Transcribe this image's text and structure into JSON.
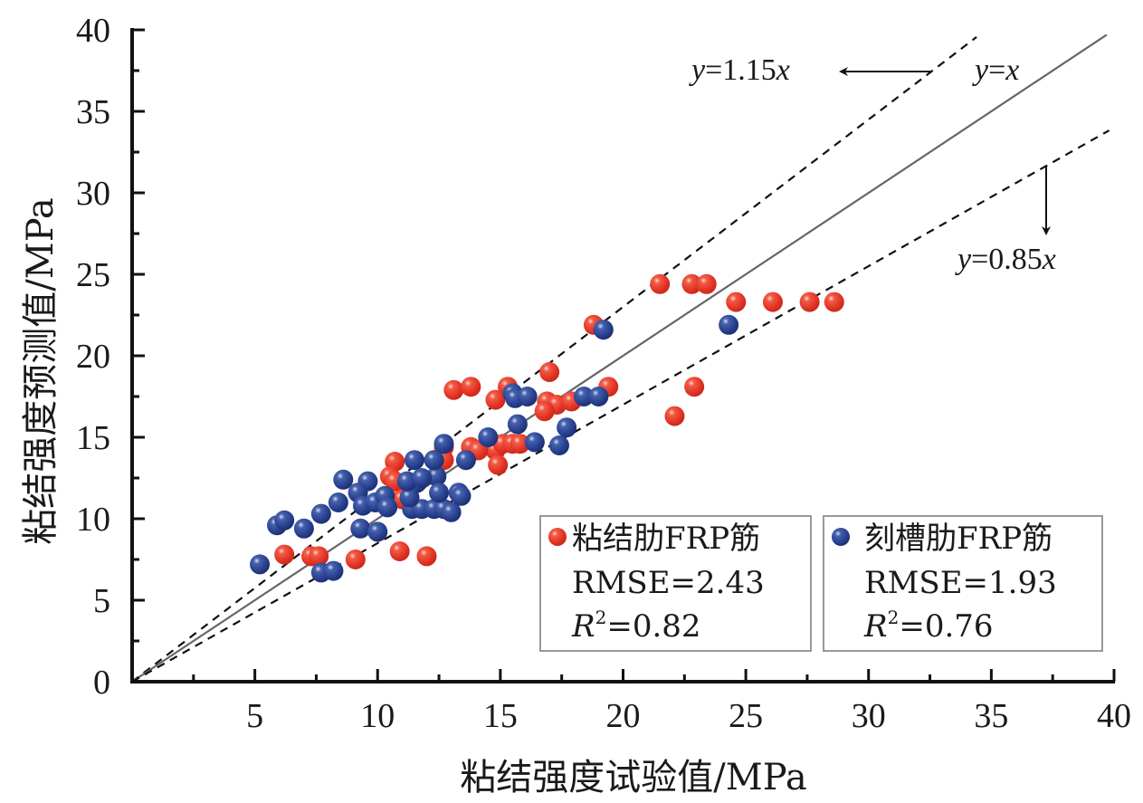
{
  "chart_data": {
    "type": "scatter",
    "title": "",
    "xlabel": "粘结强度试验值/MPa",
    "ylabel": "粘结强度预测值/MPa",
    "xlim": [
      0,
      40
    ],
    "ylim": [
      0,
      40
    ],
    "x_ticks": [
      0,
      5,
      10,
      15,
      20,
      25,
      30,
      35,
      40
    ],
    "y_ticks": [
      0,
      5,
      10,
      15,
      20,
      25,
      30,
      35,
      40
    ],
    "x_tick_labels": [
      "5",
      "10",
      "15",
      "20",
      "25",
      "30",
      "35",
      "40"
    ],
    "y_tick_labels": [
      "0",
      "5",
      "10",
      "15",
      "20",
      "25",
      "30",
      "35",
      "40"
    ],
    "grid": false,
    "reference_lines": [
      {
        "name": "y=1.15x",
        "slope": 1.15,
        "style": "dashed",
        "label_prefix": "y",
        "label_rest": "=1.15",
        "label_suffix": "x"
      },
      {
        "name": "y=x",
        "slope": 1.0,
        "style": "solid",
        "label_prefix": "y",
        "label_rest": "=",
        "label_suffix": "x"
      },
      {
        "name": "y=0.85x",
        "slope": 0.85,
        "style": "dashed",
        "label_prefix": "y",
        "label_rest": "=0.85",
        "label_suffix": "x"
      }
    ],
    "series": [
      {
        "name": "粘结肋FRP筋",
        "color": "#e8372a",
        "rmse_label": "RMSE=2.43",
        "r2_value": "=0.82",
        "points": [
          [
            6.2,
            7.8
          ],
          [
            7.3,
            7.7
          ],
          [
            7.6,
            7.7
          ],
          [
            9.1,
            7.5
          ],
          [
            10.9,
            8.0
          ],
          [
            12.0,
            7.7
          ],
          [
            10.7,
            13.5
          ],
          [
            10.5,
            12.6
          ],
          [
            10.8,
            11.5
          ],
          [
            11.0,
            11.2
          ],
          [
            10.7,
            12.3
          ],
          [
            12.7,
            14.4
          ],
          [
            12.7,
            13.6
          ],
          [
            13.8,
            14.4
          ],
          [
            14.8,
            14.2
          ],
          [
            14.9,
            13.3
          ],
          [
            14.1,
            14.2
          ],
          [
            15.1,
            14.6
          ],
          [
            15.5,
            14.6
          ],
          [
            15.8,
            14.6
          ],
          [
            13.1,
            17.9
          ],
          [
            13.8,
            18.1
          ],
          [
            15.3,
            18.1
          ],
          [
            17.0,
            19.0
          ],
          [
            14.8,
            17.3
          ],
          [
            16.9,
            17.2
          ],
          [
            17.3,
            17.0
          ],
          [
            17.9,
            17.2
          ],
          [
            19.4,
            18.1
          ],
          [
            16.8,
            16.6
          ],
          [
            18.8,
            21.9
          ],
          [
            21.5,
            24.4
          ],
          [
            22.8,
            24.4
          ],
          [
            23.4,
            24.4
          ],
          [
            24.6,
            23.3
          ],
          [
            26.1,
            23.3
          ],
          [
            27.6,
            23.3
          ],
          [
            28.6,
            23.3
          ],
          [
            22.9,
            18.1
          ],
          [
            22.1,
            16.3
          ]
        ]
      },
      {
        "name": "刻槽肋FRP筋",
        "color": "#2a4592",
        "rmse_label": "RMSE=1.93",
        "r2_value": "=0.76",
        "points": [
          [
            5.2,
            7.2
          ],
          [
            5.9,
            9.6
          ],
          [
            6.2,
            9.9
          ],
          [
            7.0,
            9.4
          ],
          [
            7.7,
            6.7
          ],
          [
            8.2,
            6.8
          ],
          [
            7.7,
            10.3
          ],
          [
            8.6,
            12.4
          ],
          [
            9.6,
            12.3
          ],
          [
            9.2,
            11.6
          ],
          [
            8.4,
            11.0
          ],
          [
            9.4,
            10.8
          ],
          [
            9.9,
            11.0
          ],
          [
            10.3,
            11.4
          ],
          [
            10.4,
            10.7
          ],
          [
            9.3,
            9.4
          ],
          [
            10.0,
            9.2
          ],
          [
            11.4,
            10.6
          ],
          [
            11.8,
            10.6
          ],
          [
            12.3,
            10.6
          ],
          [
            12.7,
            10.6
          ],
          [
            13.0,
            10.4
          ],
          [
            11.6,
            12.2
          ],
          [
            12.4,
            12.6
          ],
          [
            11.5,
            13.6
          ],
          [
            11.3,
            11.3
          ],
          [
            12.5,
            11.6
          ],
          [
            13.3,
            11.6
          ],
          [
            13.4,
            11.4
          ],
          [
            12.7,
            14.6
          ],
          [
            12.3,
            13.6
          ],
          [
            13.6,
            13.6
          ],
          [
            11.2,
            12.3
          ],
          [
            11.8,
            12.5
          ],
          [
            14.5,
            15.0
          ],
          [
            15.7,
            15.8
          ],
          [
            16.4,
            14.7
          ],
          [
            17.7,
            15.6
          ],
          [
            17.4,
            14.5
          ],
          [
            15.5,
            17.7
          ],
          [
            15.6,
            17.4
          ],
          [
            16.1,
            17.5
          ],
          [
            18.4,
            17.5
          ],
          [
            19.0,
            17.5
          ],
          [
            19.2,
            21.6
          ],
          [
            24.3,
            21.9
          ]
        ]
      }
    ],
    "legend": {
      "placement": "bottom-right",
      "r_symbol": "R",
      "r_sup": "2"
    }
  }
}
